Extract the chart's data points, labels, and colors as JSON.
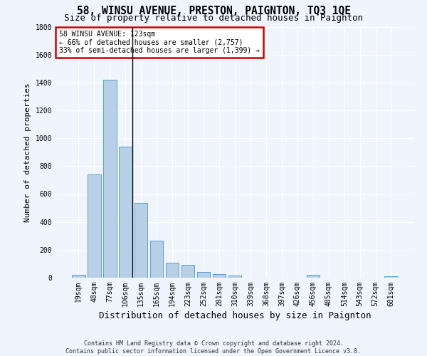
{
  "title": "58, WINSU AVENUE, PRESTON, PAIGNTON, TQ3 1QE",
  "subtitle": "Size of property relative to detached houses in Paignton",
  "xlabel": "Distribution of detached houses by size in Paignton",
  "ylabel": "Number of detached properties",
  "footer_line1": "Contains HM Land Registry data © Crown copyright and database right 2024.",
  "footer_line2": "Contains public sector information licensed under the Open Government Licence v3.0.",
  "annotation_title": "58 WINSU AVENUE: 123sqm",
  "annotation_line1": "← 66% of detached houses are smaller (2,757)",
  "annotation_line2": "33% of semi-detached houses are larger (1,399) →",
  "bar_labels": [
    "19sqm",
    "48sqm",
    "77sqm",
    "106sqm",
    "135sqm",
    "165sqm",
    "194sqm",
    "223sqm",
    "252sqm",
    "281sqm",
    "310sqm",
    "339sqm",
    "368sqm",
    "397sqm",
    "426sqm",
    "456sqm",
    "485sqm",
    "514sqm",
    "543sqm",
    "572sqm",
    "601sqm"
  ],
  "bar_values": [
    22,
    740,
    1420,
    940,
    535,
    265,
    105,
    92,
    40,
    28,
    15,
    2,
    2,
    1,
    0,
    18,
    0,
    0,
    0,
    0,
    12
  ],
  "bar_color": "#b8cfe8",
  "bar_edge_color": "#5a9fd4",
  "property_bin_index": 3,
  "ylim": [
    0,
    1800
  ],
  "bg_color": "#f0f4fc",
  "plot_bg_color": "#f0f4fc",
  "annotation_box_color": "#ffffff",
  "annotation_box_edge": "#cc0000",
  "grid_color": "#ffffff",
  "title_fontsize": 10.5,
  "subtitle_fontsize": 9,
  "ylabel_fontsize": 8,
  "xlabel_fontsize": 9,
  "tick_fontsize": 7,
  "annotation_fontsize": 7,
  "footer_fontsize": 6
}
